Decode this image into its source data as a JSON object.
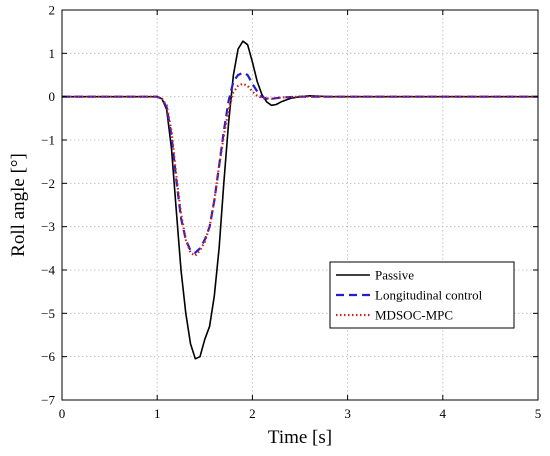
{
  "chart_data": {
    "type": "line",
    "xlabel": "Time [s]",
    "ylabel": "Roll angle [°]",
    "xlim": [
      0,
      5
    ],
    "ylim": [
      -7,
      2
    ],
    "xticks": [
      "0",
      "1",
      "2",
      "3",
      "4",
      "5"
    ],
    "yticks": [
      "2",
      "1",
      "0",
      "−1",
      "−2",
      "−3",
      "−4",
      "−5",
      "−6",
      "−7"
    ],
    "grid": true,
    "legend_position": "bottom-right",
    "series": [
      {
        "name": "Passive",
        "color": "#000000",
        "style": "solid",
        "x": [
          0,
          1.0,
          1.05,
          1.1,
          1.15,
          1.2,
          1.25,
          1.3,
          1.35,
          1.4,
          1.45,
          1.5,
          1.55,
          1.6,
          1.65,
          1.7,
          1.75,
          1.8,
          1.85,
          1.9,
          1.95,
          2.0,
          2.05,
          2.1,
          2.15,
          2.2,
          2.25,
          2.3,
          2.4,
          2.5,
          2.6,
          2.7,
          2.8,
          3.0,
          5.0
        ],
        "y": [
          0,
          0,
          -0.05,
          -0.3,
          -1.2,
          -2.6,
          -4.0,
          -5.0,
          -5.7,
          -6.05,
          -6.0,
          -5.6,
          -5.3,
          -4.6,
          -3.5,
          -2.0,
          -0.6,
          0.5,
          1.1,
          1.28,
          1.2,
          0.8,
          0.35,
          0.05,
          -0.12,
          -0.2,
          -0.18,
          -0.12,
          -0.04,
          0.0,
          0.02,
          0.01,
          0.0,
          0,
          0
        ]
      },
      {
        "name": "Longitudinal control",
        "color": "#1f1fd0",
        "style": "dashed",
        "x": [
          0,
          1.0,
          1.05,
          1.1,
          1.15,
          1.2,
          1.25,
          1.3,
          1.35,
          1.4,
          1.45,
          1.5,
          1.55,
          1.6,
          1.65,
          1.7,
          1.75,
          1.8,
          1.85,
          1.9,
          1.95,
          2.0,
          2.05,
          2.1,
          2.15,
          2.2,
          2.3,
          2.5,
          3.0,
          5.0
        ],
        "y": [
          0,
          0,
          -0.05,
          -0.25,
          -0.9,
          -1.9,
          -2.8,
          -3.3,
          -3.55,
          -3.6,
          -3.5,
          -3.3,
          -3.0,
          -2.4,
          -1.6,
          -0.8,
          -0.1,
          0.35,
          0.5,
          0.55,
          0.5,
          0.3,
          0.12,
          0.0,
          -0.05,
          -0.05,
          -0.02,
          0.0,
          0,
          0
        ]
      },
      {
        "name": "MDSOC-MPC",
        "color": "#d02020",
        "style": "dotted",
        "x": [
          0,
          1.0,
          1.05,
          1.1,
          1.15,
          1.2,
          1.25,
          1.3,
          1.35,
          1.4,
          1.45,
          1.5,
          1.55,
          1.6,
          1.65,
          1.7,
          1.75,
          1.8,
          1.85,
          1.9,
          1.95,
          2.0,
          2.05,
          2.1,
          2.2,
          2.3,
          2.5,
          3.0,
          5.0
        ],
        "y": [
          0,
          0,
          -0.05,
          -0.2,
          -0.8,
          -1.8,
          -2.7,
          -3.3,
          -3.6,
          -3.67,
          -3.55,
          -3.35,
          -3.0,
          -2.4,
          -1.6,
          -0.9,
          -0.3,
          0.1,
          0.25,
          0.3,
          0.25,
          0.12,
          0.02,
          -0.03,
          -0.05,
          -0.02,
          0.0,
          0,
          0
        ]
      }
    ]
  }
}
